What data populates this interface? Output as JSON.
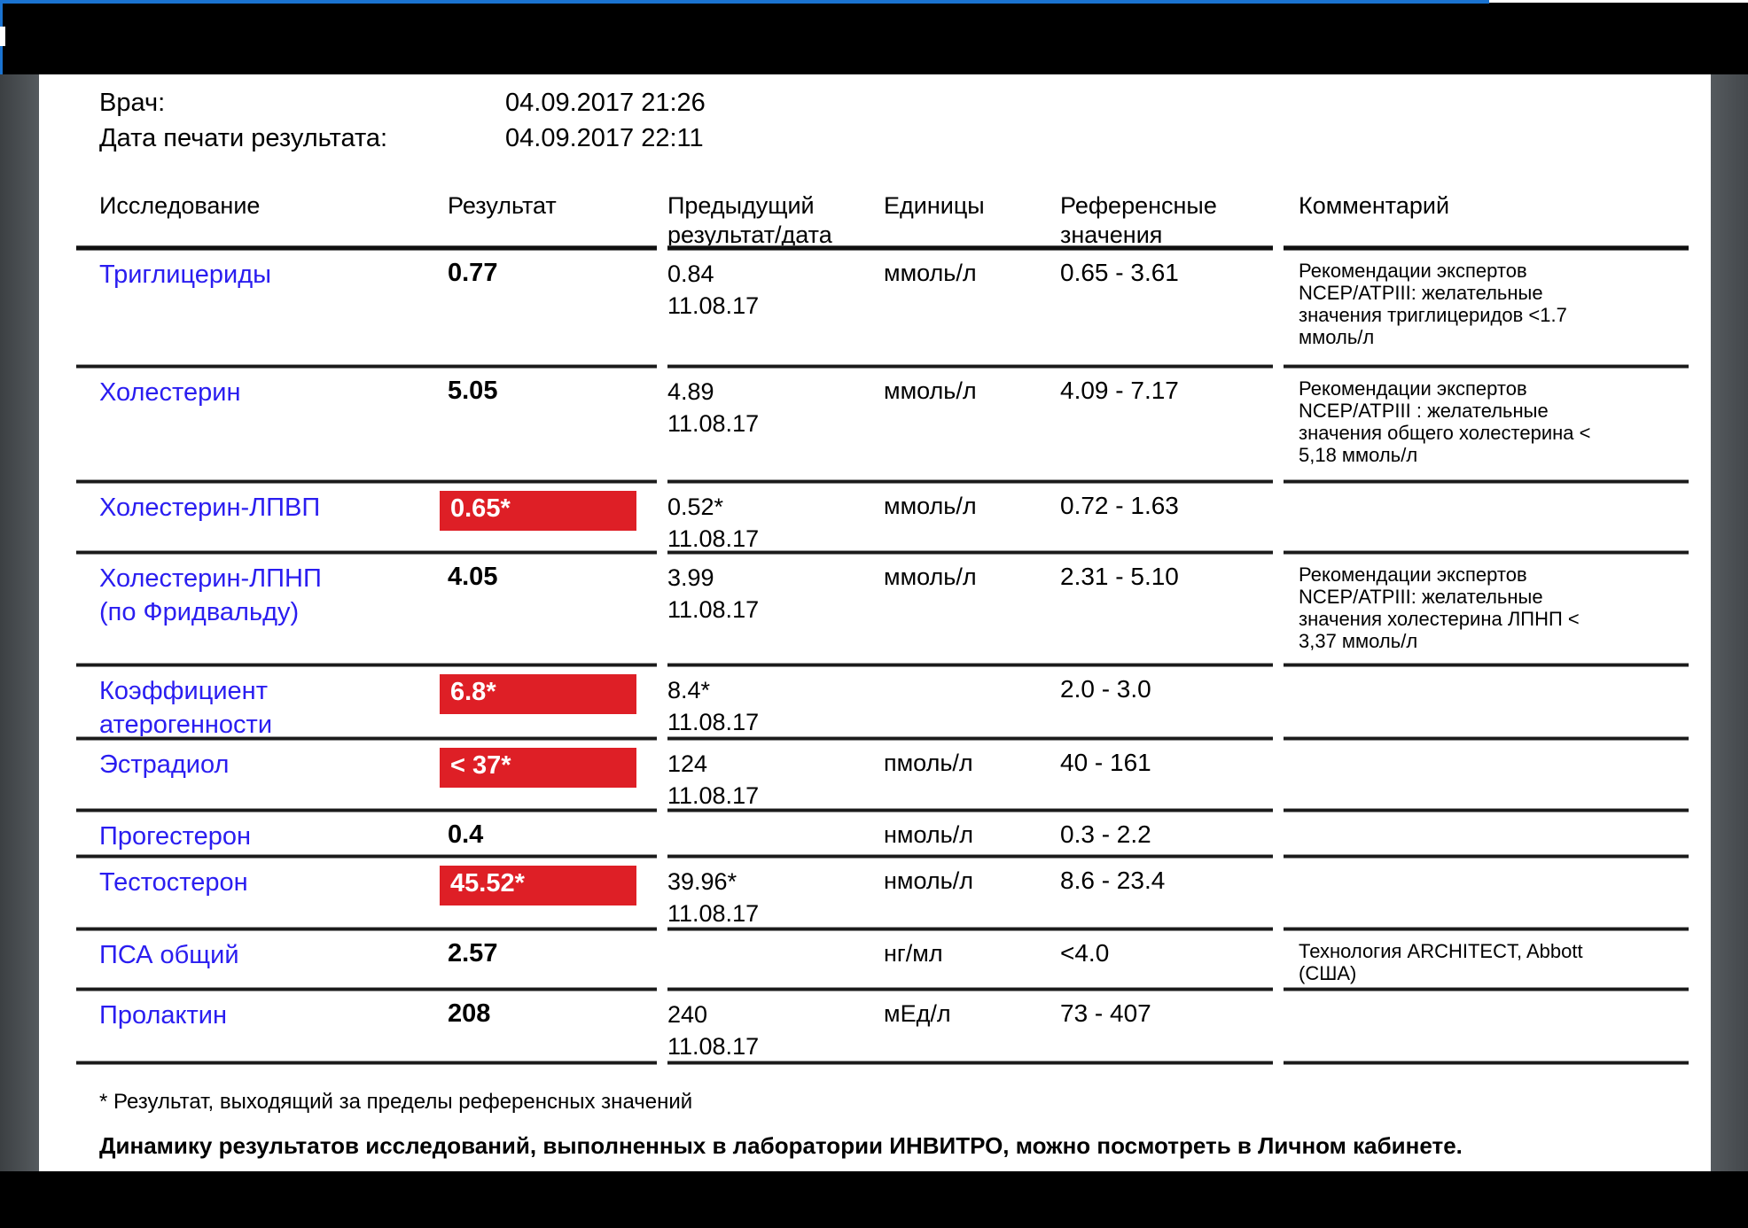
{
  "meta": {
    "doctor_label": "Врач:",
    "doctor_value": "04.09.2017 21:26",
    "print_label": "Дата печати результата:",
    "print_value": "04.09.2017 22:11"
  },
  "table": {
    "headers": [
      "Исследование",
      "Результат",
      "Предыдущий результат/дата",
      "Единицы",
      "Референсные значения",
      "Комментарий"
    ],
    "rows": [
      {
        "name": "Триглицериды",
        "result": "0.77",
        "flagged": false,
        "prev": "0.84",
        "prev_date": "11.08.17",
        "units": "ммоль/л",
        "ref": "0.65 - 3.61",
        "comment": "Рекомендации экспертов NCEP/ATPIII: желательные значения триглицеридов <1.7 ммоль/л"
      },
      {
        "name": "Холестерин",
        "result": "5.05",
        "flagged": false,
        "prev": "4.89",
        "prev_date": "11.08.17",
        "units": "ммоль/л",
        "ref": "4.09 - 7.17",
        "comment": "Рекомендации экспертов NCEP/ATPIII : желательные значения общего холестерина < 5,18 ммоль/л"
      },
      {
        "name": "Холестерин-ЛПВП",
        "result": "0.65*",
        "flagged": true,
        "prev": "0.52*",
        "prev_date": "11.08.17",
        "units": "ммоль/л",
        "ref": "0.72 - 1.63",
        "comment": ""
      },
      {
        "name": "Холестерин-ЛПНП (по Фридвальду)",
        "result": "4.05",
        "flagged": false,
        "prev": "3.99",
        "prev_date": "11.08.17",
        "units": "ммоль/л",
        "ref": "2.31 - 5.10",
        "comment": "Рекомендации экспертов NCEP/ATPIII: желательные значения холестерина ЛПНП < 3,37 ммоль/л"
      },
      {
        "name": "Коэффициент атерогенности",
        "result": "6.8*",
        "flagged": true,
        "prev": "8.4*",
        "prev_date": "11.08.17",
        "units": "",
        "ref": "2.0 - 3.0",
        "comment": ""
      },
      {
        "name": "Эстрадиол",
        "result": "< 37*",
        "flagged": true,
        "prev": "124",
        "prev_date": "11.08.17",
        "units": "пмоль/л",
        "ref": "40 - 161",
        "comment": ""
      },
      {
        "name": "Прогестерон",
        "result": "0.4",
        "flagged": false,
        "prev": "",
        "prev_date": "",
        "units": "нмоль/л",
        "ref": "0.3 - 2.2",
        "comment": ""
      },
      {
        "name": "Тестостерон",
        "result": "45.52*",
        "flagged": true,
        "prev": "39.96*",
        "prev_date": "11.08.17",
        "units": "нмоль/л",
        "ref": "8.6 - 23.4",
        "comment": ""
      },
      {
        "name": "ПСА общий",
        "result": "2.57",
        "flagged": false,
        "prev": "",
        "prev_date": "",
        "units": "нг/мл",
        "ref": "<4.0",
        "comment": "Технология ARCHITECT, Abbott (США)"
      },
      {
        "name": "Пролактин",
        "result": "208",
        "flagged": false,
        "prev": "240",
        "prev_date": "11.08.17",
        "units": "мЕд/л",
        "ref": "73 - 407",
        "comment": ""
      }
    ]
  },
  "footer": {
    "note": "* Результат, выходящий за пределы референсных значений",
    "dynamics": "Динамику результатов исследований, выполненных в лаборатории ИНВИТРО, можно посмотреть в Личном кабинете."
  },
  "colors": {
    "flag_background": "#de1f26",
    "flag_text": "#ffffff",
    "test_name_blue": "#2a1df0",
    "window_accent_blue": "#1a73d1"
  }
}
